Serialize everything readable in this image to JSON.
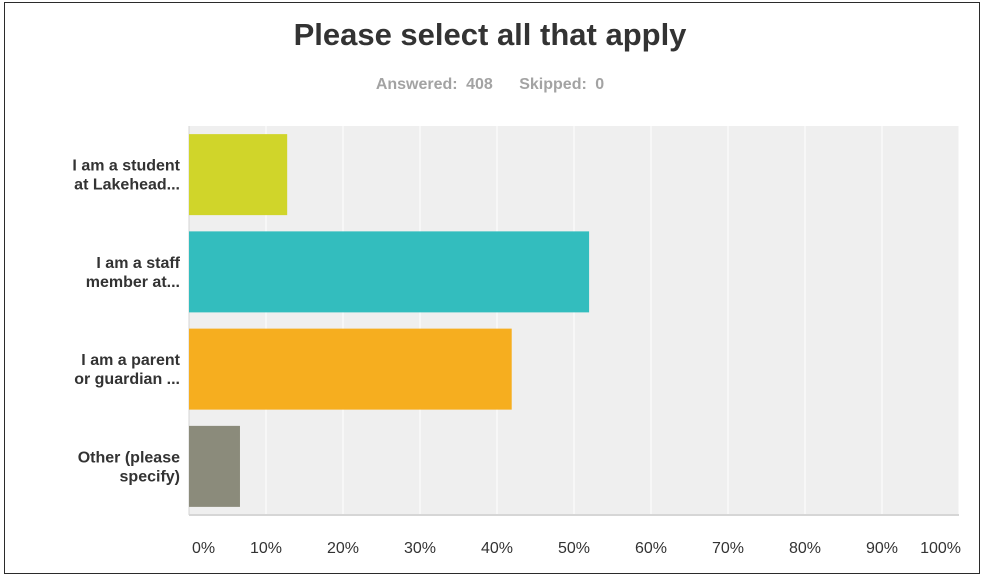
{
  "header": {
    "title": "Please select all that apply",
    "answered_label": "Answered:",
    "answered_value": "408",
    "skipped_label": "Skipped:",
    "skipped_value": "0"
  },
  "chart_data": {
    "type": "bar",
    "orientation": "horizontal",
    "title": "Please select all that apply",
    "categories": [
      [
        "I am a student",
        "at Lakehead..."
      ],
      [
        "I am a staff",
        "member at..."
      ],
      [
        "I am a parent",
        "or guardian ..."
      ],
      [
        "Other (please",
        "specify)"
      ]
    ],
    "values": [
      12.75,
      51.96,
      41.91,
      6.62
    ],
    "colors": [
      "#d0d52a",
      "#33bdbe",
      "#f6ae1f",
      "#8b8b7b"
    ],
    "xlim": [
      0,
      100
    ],
    "ticks": [
      "0%",
      "10%",
      "20%",
      "30%",
      "40%",
      "50%",
      "60%",
      "70%",
      "80%",
      "90%",
      "100%"
    ],
    "grid": true,
    "plot_background": "#efefef",
    "grid_color": "#ffffff"
  }
}
